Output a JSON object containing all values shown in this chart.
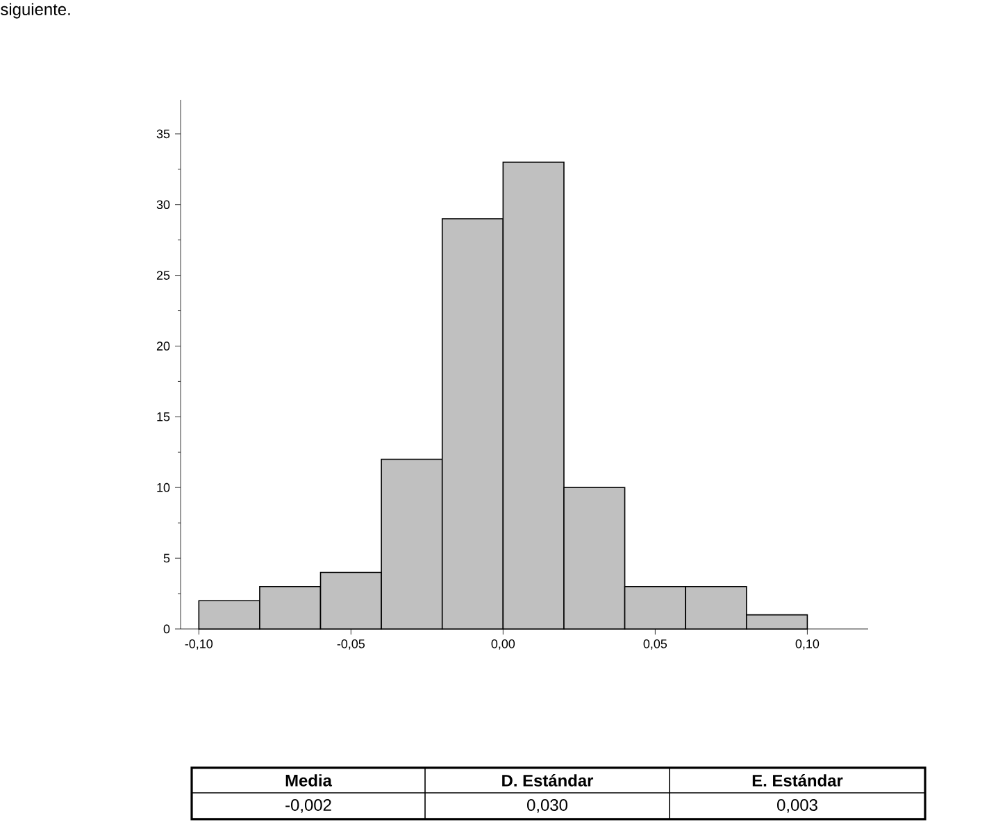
{
  "chart_data": {
    "type": "histogram",
    "bins": [
      -0.1,
      -0.08,
      -0.06,
      -0.04,
      -0.02,
      0.0,
      0.02,
      0.04,
      0.06,
      0.08,
      0.1
    ],
    "values": [
      2,
      3,
      4,
      12,
      29,
      33,
      10,
      3,
      3,
      1
    ],
    "color": "#c0c0c0",
    "xlim": [
      -0.106,
      0.12
    ],
    "xticks": [
      {
        "value": -0.1,
        "label": "-0,10"
      },
      {
        "value": -0.05,
        "label": "-0,05"
      },
      {
        "value": 0.0,
        "label": "0,00"
      },
      {
        "value": 0.05,
        "label": "0,05"
      },
      {
        "value": 0.1,
        "label": "0,10"
      }
    ],
    "ylim": [
      0,
      37.4
    ],
    "yticks": [
      0,
      5,
      10,
      15,
      20,
      25,
      30,
      35
    ],
    "grid": false,
    "annotations": [
      "siguiente.",
      "Media",
      "D. Estándar",
      "E. Estándar",
      "-0,002",
      "0,030",
      "0,003"
    ]
  }
}
